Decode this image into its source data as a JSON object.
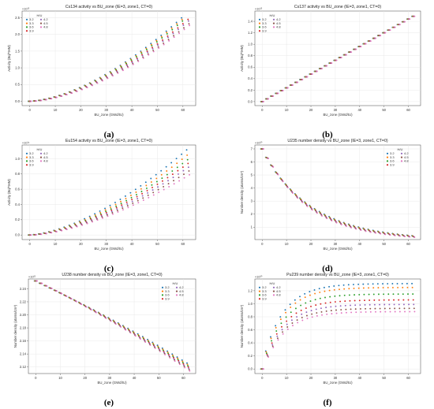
{
  "figure": {
    "series_names": [
      "3.2",
      "3.3",
      "3.6",
      "3.9",
      "4.2",
      "4.5",
      "4.8"
    ],
    "series_colors": [
      "#1f77b4",
      "#ff7f0e",
      "#2ca02c",
      "#d62728",
      "#9467bd",
      "#8c564b",
      "#e377c2"
    ],
    "legend_title": "H/U",
    "x_values": [
      0,
      2,
      4,
      6,
      8,
      10,
      12,
      14,
      16,
      18,
      20,
      22,
      24,
      26,
      28,
      30,
      32,
      34,
      36,
      38,
      40,
      42,
      44,
      46,
      48,
      50,
      52,
      54,
      56,
      58,
      60,
      62
    ],
    "x_label": "BU_zone (GWd/tU)"
  },
  "chart_data": [
    {
      "type": "scatter",
      "caption": "(a)",
      "title": "Cs134 activity vs BU_zone (IE=3, zone1, CT=0)",
      "xlabel": "BU_zone (GWd/tU)",
      "ylabel": "Activity (Bq/*tHM)",
      "offset_text": "×10¹⁵",
      "xlim": [
        -3,
        65
      ],
      "ylim": [
        -0.13,
        2.7
      ],
      "xticks": [
        0,
        10,
        20,
        30,
        40,
        50,
        60
      ],
      "yticks": [
        0.0,
        0.5,
        1.0,
        1.5,
        2.0,
        2.5
      ],
      "ytick_labels": [
        "0.0",
        "0.5",
        "1.0",
        "1.5",
        "2.0",
        "2.5"
      ],
      "legend_position": "top-left",
      "series": [
        {
          "name": "3.2",
          "x_max": 61.5,
          "y_at_x_max": 2.6,
          "shape": "power 1.65"
        },
        {
          "name": "3.3",
          "x_max": 61.5,
          "y_at_x_max": 2.55,
          "shape": "power 1.65"
        },
        {
          "name": "3.6",
          "x_max": 61.5,
          "y_at_x_max": 2.5,
          "shape": "power 1.65"
        },
        {
          "name": "3.9",
          "x_max": 62,
          "y_at_x_max": 2.45,
          "shape": "power 1.65"
        },
        {
          "name": "4.2",
          "x_max": 62,
          "y_at_x_max": 2.4,
          "shape": "power 1.65"
        },
        {
          "name": "4.5",
          "x_max": 62.5,
          "y_at_x_max": 2.35,
          "shape": "power 1.65"
        },
        {
          "name": "4.8",
          "x_max": 62.5,
          "y_at_x_max": 2.3,
          "shape": "power 1.65"
        }
      ]
    },
    {
      "type": "scatter",
      "caption": "(b)",
      "title": "Cs137 activity vs BU_zone (IE=3, zone1, CT=0)",
      "xlabel": "BU_zone (GWd/tU)",
      "ylabel": "Activity (Bq/*tHM)",
      "offset_text": "×10¹⁵",
      "xlim": [
        -3,
        65
      ],
      "ylim": [
        -0.07,
        1.58
      ],
      "xticks": [
        0,
        10,
        20,
        30,
        40,
        50,
        60
      ],
      "yticks": [
        0.0,
        0.2,
        0.4,
        0.6,
        0.8,
        1.0,
        1.2,
        1.4
      ],
      "ytick_labels": [
        "0.0",
        "0.2",
        "0.4",
        "0.6",
        "0.8",
        "1.0",
        "1.2",
        "1.4"
      ],
      "legend_position": "top-left",
      "series": [
        {
          "name": "3.2",
          "x_max": 62.5,
          "y_at_x_max": 1.5,
          "shape": "linear"
        },
        {
          "name": "3.3",
          "x_max": 62.5,
          "y_at_x_max": 1.5,
          "shape": "linear"
        },
        {
          "name": "3.6",
          "x_max": 62.5,
          "y_at_x_max": 1.5,
          "shape": "linear"
        },
        {
          "name": "3.9",
          "x_max": 62.5,
          "y_at_x_max": 1.5,
          "shape": "linear"
        },
        {
          "name": "4.2",
          "x_max": 62.5,
          "y_at_x_max": 1.5,
          "shape": "linear"
        },
        {
          "name": "4.5",
          "x_max": 62.5,
          "y_at_x_max": 1.5,
          "shape": "linear"
        },
        {
          "name": "4.8",
          "x_max": 62.5,
          "y_at_x_max": 1.5,
          "shape": "linear"
        }
      ]
    },
    {
      "type": "scatter",
      "caption": "(c)",
      "title": "Eu154 activity vs BU_zone (IE=3, zone1, CT=0)",
      "xlabel": "BU_zone (GWd/tU)",
      "ylabel": "Activity (Bq/*tHM)",
      "offset_text": "×10¹⁴",
      "xlim": [
        -3,
        65
      ],
      "ylim": [
        -0.06,
        1.18
      ],
      "xticks": [
        0,
        10,
        20,
        30,
        40,
        50,
        60
      ],
      "yticks": [
        0.0,
        0.2,
        0.4,
        0.6,
        0.8,
        1.0
      ],
      "ytick_labels": [
        "0.0",
        "0.2",
        "0.4",
        "0.6",
        "0.8",
        "1.0"
      ],
      "legend_position": "top-left",
      "series": [
        {
          "name": "3.2",
          "x_max": 62.5,
          "y_at_x_max": 1.13,
          "shape": "power 1.6"
        },
        {
          "name": "3.3",
          "x_max": 62.5,
          "y_at_x_max": 1.06,
          "shape": "power 1.6"
        },
        {
          "name": "3.6",
          "x_max": 62.5,
          "y_at_x_max": 1.0,
          "shape": "power 1.6"
        },
        {
          "name": "3.9",
          "x_max": 62.5,
          "y_at_x_max": 0.95,
          "shape": "power 1.6"
        },
        {
          "name": "4.2",
          "x_max": 62.5,
          "y_at_x_max": 0.9,
          "shape": "power 1.6"
        },
        {
          "name": "4.5",
          "x_max": 62.5,
          "y_at_x_max": 0.85,
          "shape": "power 1.6"
        },
        {
          "name": "4.8",
          "x_max": 62.5,
          "y_at_x_max": 0.8,
          "shape": "power 1.6"
        }
      ]
    },
    {
      "type": "scatter",
      "caption": "(d)",
      "title": "U235 number density vs BU_zone (IE=3, zone1, CT=0)",
      "xlabel": "BU_zone (GWd/tU)",
      "ylabel": "Number density (atoms/cm³)",
      "offset_text": "×10²⁰",
      "xlim": [
        -3,
        65
      ],
      "ylim": [
        0.05,
        7.3
      ],
      "xticks": [
        0,
        10,
        20,
        30,
        40,
        50,
        60
      ],
      "yticks": [
        1,
        2,
        3,
        4,
        5,
        6,
        7
      ],
      "ytick_labels": [
        "1",
        "2",
        "3",
        "4",
        "5",
        "6",
        "7"
      ],
      "legend_position": "top-right",
      "series": [
        {
          "name": "3.2",
          "y0": 7.0,
          "y_end": 0.35,
          "shape": "exp decay"
        },
        {
          "name": "3.3",
          "y0": 7.0,
          "y_end": 0.33,
          "shape": "exp decay"
        },
        {
          "name": "3.6",
          "y0": 7.0,
          "y_end": 0.31,
          "shape": "exp decay"
        },
        {
          "name": "3.9",
          "y0": 7.0,
          "y_end": 0.29,
          "shape": "exp decay"
        },
        {
          "name": "4.2",
          "y0": 7.0,
          "y_end": 0.27,
          "shape": "exp decay"
        },
        {
          "name": "4.5",
          "y0": 7.0,
          "y_end": 0.25,
          "shape": "exp decay"
        },
        {
          "name": "4.8",
          "y0": 7.0,
          "y_end": 0.23,
          "shape": "exp decay"
        }
      ]
    },
    {
      "type": "scatter",
      "caption": "(e)",
      "title": "U238 number density vs BU_zone (IE=3, zone1, CT=0)",
      "xlabel": "BU_zone (GWd/tU)",
      "ylabel": "Number density (atoms/cm³)",
      "offset_text": "×10²²",
      "xlim": [
        -3,
        65
      ],
      "ylim": [
        2.11,
        2.255
      ],
      "xticks": [
        0,
        10,
        20,
        30,
        40,
        50,
        60
      ],
      "yticks": [
        2.12,
        2.14,
        2.16,
        2.18,
        2.2,
        2.22,
        2.24
      ],
      "ytick_labels": [
        "2.12",
        "2.14",
        "2.16",
        "2.18",
        "2.20",
        "2.22",
        "2.24"
      ],
      "legend_position": "top-right",
      "series": [
        {
          "name": "3.2",
          "y0": 2.252,
          "y_end": 2.126,
          "shape": "slightly concave"
        },
        {
          "name": "3.3",
          "y0": 2.252,
          "y_end": 2.124,
          "shape": "slightly concave"
        },
        {
          "name": "3.6",
          "y0": 2.252,
          "y_end": 2.122,
          "shape": "slightly concave"
        },
        {
          "name": "3.9",
          "y0": 2.252,
          "y_end": 2.12,
          "shape": "slightly concave"
        },
        {
          "name": "4.2",
          "y0": 2.252,
          "y_end": 2.118,
          "shape": "slightly concave"
        },
        {
          "name": "4.5",
          "y0": 2.252,
          "y_end": 2.116,
          "shape": "slightly concave"
        },
        {
          "name": "4.8",
          "y0": 2.252,
          "y_end": 2.114,
          "shape": "slightly concave"
        }
      ]
    },
    {
      "type": "scatter",
      "caption": "(f)",
      "title": "Pu239 number density vs BU_zone (IE=3, zone1, CT=0)",
      "xlabel": "BU_zone (GWd/tU)",
      "ylabel": "Number density (atoms/cm³)",
      "offset_text": "×10²⁰",
      "xlim": [
        -3,
        65
      ],
      "ylim": [
        -0.07,
        1.38
      ],
      "xticks": [
        0,
        10,
        20,
        30,
        40,
        50,
        60
      ],
      "yticks": [
        0.0,
        0.2,
        0.4,
        0.6,
        0.8,
        1.0,
        1.2
      ],
      "ytick_labels": [
        "0.0",
        "0.2",
        "0.4",
        "0.6",
        "0.8",
        "1.0",
        "1.2"
      ],
      "legend_position": "top-left",
      "series": [
        {
          "name": "3.2",
          "plateau": 1.31,
          "shape": "saturation"
        },
        {
          "name": "3.3",
          "plateau": 1.25,
          "shape": "saturation"
        },
        {
          "name": "3.6",
          "plateau": 1.15,
          "shape": "saturation"
        },
        {
          "name": "3.9",
          "plateau": 1.06,
          "shape": "saturation"
        },
        {
          "name": "4.2",
          "plateau": 0.99,
          "shape": "saturation"
        },
        {
          "name": "4.5",
          "plateau": 0.93,
          "shape": "saturation"
        },
        {
          "name": "4.8",
          "plateau": 0.88,
          "shape": "saturation"
        }
      ]
    }
  ]
}
